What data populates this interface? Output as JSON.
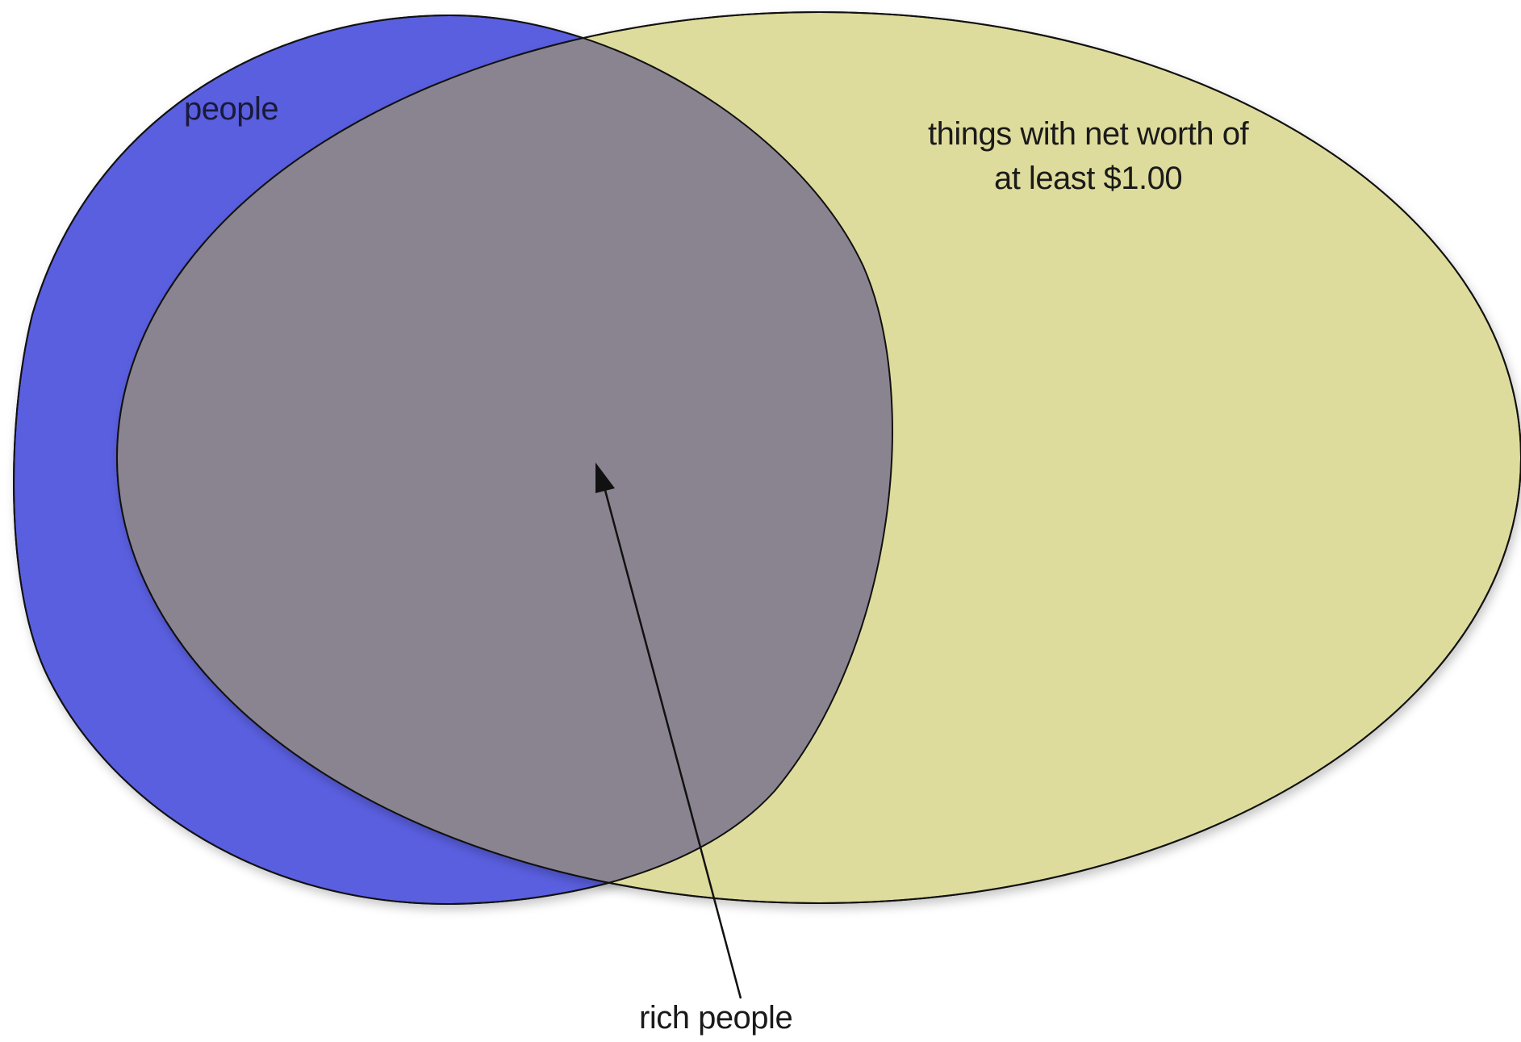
{
  "diagram": {
    "type": "venn",
    "sets": [
      {
        "name": "people",
        "color": "#5a5ee0"
      },
      {
        "name": "things with net worth of at least $1.00",
        "color": "#dedc9c"
      }
    ],
    "intersection": {
      "name": "rich people",
      "color": "#8a8490"
    }
  },
  "labels": {
    "people": "people",
    "things_line1": "things with net  worth of",
    "things_line2": "at least $1.00",
    "intersection": "rich people"
  }
}
